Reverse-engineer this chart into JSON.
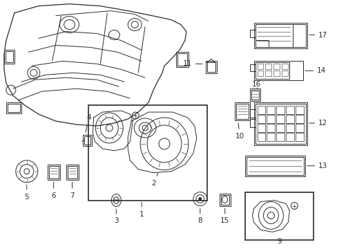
{
  "bg_color": "#ffffff",
  "line_color": "#2a2a2a",
  "figsize": [
    4.89,
    3.6
  ],
  "dpi": 100,
  "lw": 0.7
}
